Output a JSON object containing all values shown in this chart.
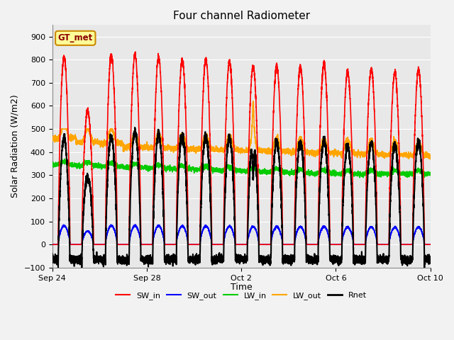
{
  "title": "Four channel Radiometer",
  "xlabel": "Time",
  "ylabel": "Solar Radiation (W/m2)",
  "ylim": [
    -100,
    950
  ],
  "yticks": [
    -100,
    0,
    100,
    200,
    300,
    400,
    500,
    600,
    700,
    800,
    900
  ],
  "num_days": 17,
  "colors": {
    "SW_in": "#FF0000",
    "SW_out": "#0000FF",
    "LW_in": "#00CC00",
    "LW_out": "#FFA500",
    "Rnet": "#000000"
  },
  "linewidths": {
    "SW_in": 1.2,
    "SW_out": 1.2,
    "LW_in": 1.2,
    "LW_out": 1.2,
    "Rnet": 1.5
  },
  "legend_label": "GT_met",
  "legend_color": "#FFFF99",
  "legend_border_color": "#CC8800",
  "xtick_labels": [
    "Sep 24",
    "Sep 28",
    "Oct 2",
    "Oct 6",
    "Oct 10"
  ],
  "xtick_positions": [
    0,
    4,
    8,
    12,
    16
  ],
  "plot_bg_color": "#E8E8E8",
  "grid_color": "#FFFFFF",
  "title_fontsize": 11,
  "axis_fontsize": 9,
  "tick_fontsize": 8
}
